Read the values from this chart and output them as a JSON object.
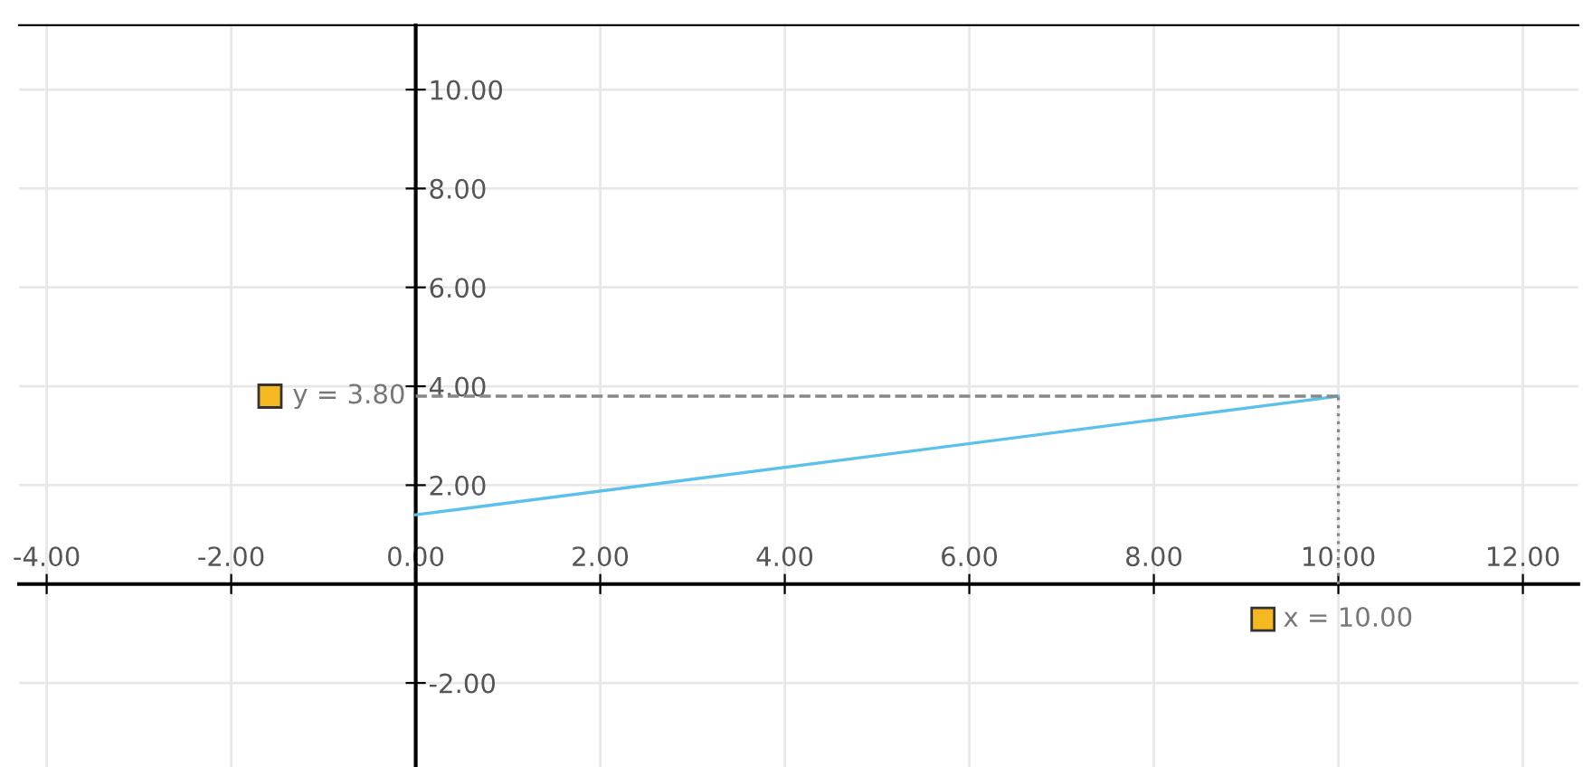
{
  "chart_data": {
    "type": "line",
    "series": [
      {
        "color": "#5bc0eb",
        "values": [
          1.4,
          3.8
        ]
      },
      {
        "color": "#888888",
        "values": [
          3.8,
          3.8
        ],
        "line_style": "dashed"
      },
      {
        "color": "#888888",
        "x": [
          10,
          10
        ],
        "values": [
          0,
          3.8
        ],
        "line_style": "dotted"
      }
    ],
    "x": [
      0,
      10
    ],
    "annotations": [
      {
        "text": "y = 3.80",
        "x": 0,
        "y": 3.8
      },
      {
        "text": "x = 10.00",
        "x": 10,
        "y": 0
      }
    ],
    "xlim": [
      -4.3,
      12.6
    ],
    "ylim": [
      -3.7,
      11.3
    ],
    "xticks": [
      {
        "value": -4,
        "label": "-4.00"
      },
      {
        "value": -2,
        "label": "-2.00"
      },
      {
        "value": 0,
        "label": "0.00"
      },
      {
        "value": 2,
        "label": "2.00"
      },
      {
        "value": 4,
        "label": "4.00"
      },
      {
        "value": 6,
        "label": "6.00"
      },
      {
        "value": 8,
        "label": "8.00"
      },
      {
        "value": 10,
        "label": "10.00"
      },
      {
        "value": 12,
        "label": "12.00"
      }
    ],
    "yticks": [
      {
        "value": -2,
        "label": "-2.00"
      },
      {
        "value": 0,
        "label": null
      },
      {
        "value": 2,
        "label": "2.00"
      },
      {
        "value": 4,
        "label": "4.00"
      },
      {
        "value": 6,
        "label": "6.00"
      },
      {
        "value": 8,
        "label": "8.00"
      },
      {
        "value": 10,
        "label": "10.00"
      }
    ],
    "grid": true,
    "marker": "none",
    "line_style": "solid"
  }
}
